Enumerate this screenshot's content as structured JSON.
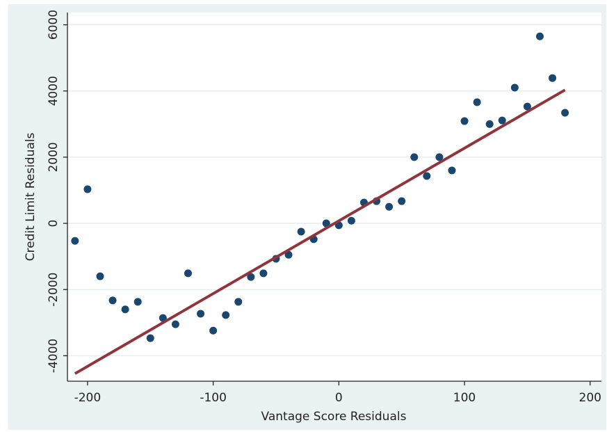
{
  "chart_data": {
    "type": "scatter",
    "xlabel": "Vantage Score Residuals",
    "ylabel": "Credit Limit Residuals",
    "xlim": [
      -216,
      209
    ],
    "ylim": [
      -4770,
      6370
    ],
    "xticks": [
      -200,
      -100,
      0,
      100,
      200
    ],
    "yticks": [
      -4000,
      -2000,
      0,
      2000,
      4000,
      6000
    ],
    "grid": true,
    "series": [
      {
        "color": "#1a476f",
        "x": [
          -210,
          -200,
          -190,
          -180,
          -170,
          -160,
          -150,
          -140,
          -130,
          -120,
          -110,
          -100,
          -90,
          -80,
          -70,
          -60,
          -50,
          -40,
          -30,
          -20,
          -10,
          0,
          10,
          20,
          30,
          40,
          50,
          60,
          70,
          80,
          90,
          100,
          110,
          120,
          130,
          140,
          150,
          160,
          170,
          180
        ],
        "values": [
          -530,
          1030,
          -1600,
          -2330,
          -2600,
          -2370,
          -3470,
          -2860,
          -3050,
          -1510,
          -2730,
          -3240,
          -2770,
          -2370,
          -1620,
          -1510,
          -1070,
          -950,
          -250,
          -480,
          0,
          -60,
          80,
          630,
          670,
          500,
          670,
          2000,
          1430,
          2000,
          1600,
          3090,
          3660,
          3000,
          3110,
          4100,
          3530,
          5650,
          4390,
          3340
        ]
      },
      {
        "color": "#90353b",
        "line": true,
        "x": [
          -210,
          180
        ],
        "values": [
          -4540,
          4030
        ]
      }
    ]
  }
}
